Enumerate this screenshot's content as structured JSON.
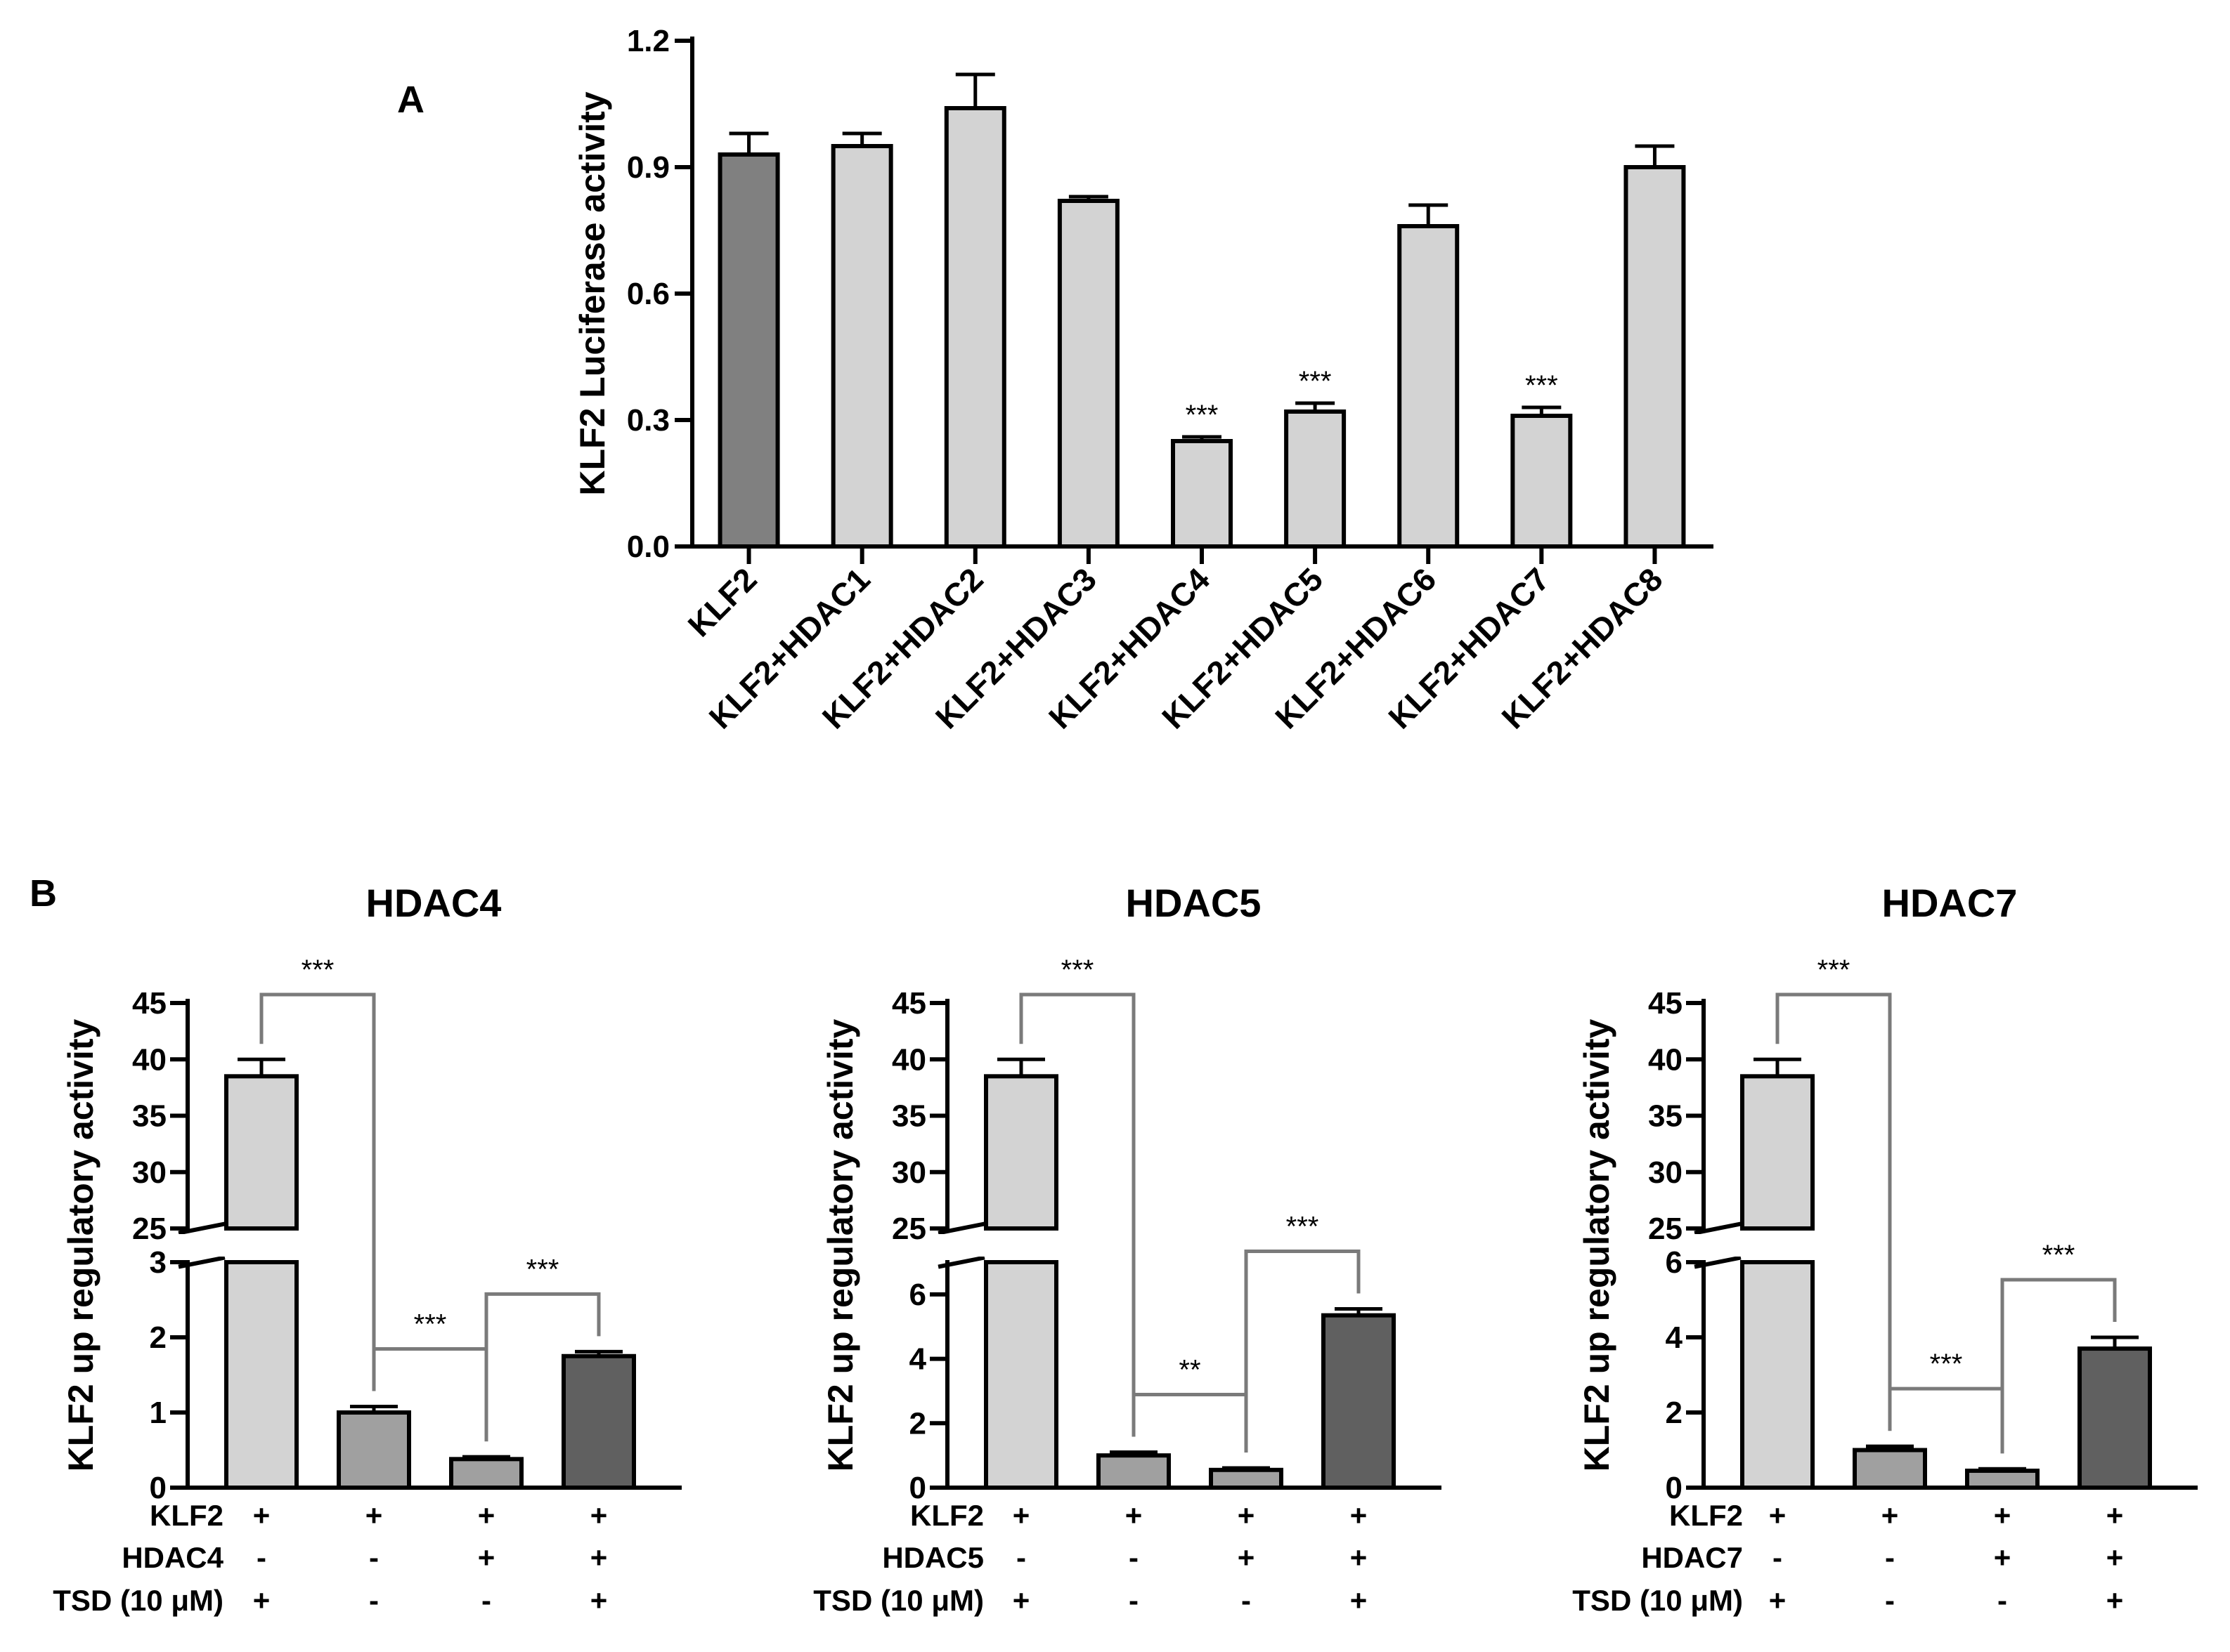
{
  "panels": {
    "a": "A",
    "b": "B"
  },
  "chart_data": [
    {
      "id": "A",
      "type": "bar",
      "title": "",
      "xlabel": "",
      "ylabel": "KLF2 Luciferase activity",
      "ylim": [
        0,
        1.2
      ],
      "yticks": [
        "0.0",
        "0.3",
        "0.6",
        "0.9",
        "1.2"
      ],
      "ytick_values": [
        0,
        0.3,
        0.6,
        0.9,
        1.2
      ],
      "categories": [
        "KLF2",
        "KLF2+HDAC1",
        "KLF2+HDAC2",
        "KLF2+HDAC3",
        "KLF2+HDAC4",
        "KLF2+HDAC5",
        "KLF2+HDAC6",
        "KLF2+HDAC7",
        "KLF2+HDAC8"
      ],
      "values": [
        0.93,
        0.95,
        1.04,
        0.82,
        0.25,
        0.32,
        0.76,
        0.31,
        0.9
      ],
      "errors": [
        0.05,
        0.03,
        0.08,
        0.01,
        0.01,
        0.02,
        0.05,
        0.02,
        0.05
      ],
      "significance": [
        "",
        "",
        "",
        "",
        "***",
        "***",
        "",
        "***",
        ""
      ],
      "colors": [
        "#808080",
        "#d3d3d3",
        "#d3d3d3",
        "#d3d3d3",
        "#d3d3d3",
        "#d3d3d3",
        "#d3d3d3",
        "#d3d3d3",
        "#d3d3d3"
      ]
    },
    {
      "id": "B-HDAC4",
      "type": "bar",
      "title": "HDAC4",
      "ylabel": "KLF2 up regulatory activity",
      "axis_break": {
        "lower": [
          0,
          3
        ],
        "upper": [
          25,
          45
        ]
      },
      "yticks_lower": [
        "0",
        "1",
        "2",
        "3"
      ],
      "ytick_values_lower": [
        0,
        1,
        2,
        3
      ],
      "yticks_upper": [
        "25",
        "30",
        "35",
        "40",
        "45"
      ],
      "ytick_values_upper": [
        25,
        30,
        35,
        40,
        45
      ],
      "values": [
        38.5,
        1.0,
        0.38,
        1.75
      ],
      "errors": [
        1.5,
        0.08,
        0.03,
        0.06
      ],
      "colors": [
        "#d3d3d3",
        "#a0a0a0",
        "#a0a0a0",
        "#606060"
      ],
      "row_labels": [
        "KLF2",
        "HDAC4",
        "TSD (10 μM)"
      ],
      "rows": [
        [
          "+",
          "+",
          "+",
          "+"
        ],
        [
          "-",
          "-",
          "+",
          "+"
        ],
        [
          "+",
          "-",
          "-",
          "+"
        ]
      ],
      "comparisons": [
        {
          "from": 0,
          "to": 1,
          "label": "***"
        },
        {
          "from": 1,
          "to": 2,
          "label": "***"
        },
        {
          "from": 2,
          "to": 3,
          "label": "***"
        }
      ]
    },
    {
      "id": "B-HDAC5",
      "type": "bar",
      "title": "HDAC5",
      "ylabel": "KLF2 up regulatory activity",
      "axis_break": {
        "lower": [
          0,
          7
        ],
        "upper": [
          25,
          45
        ]
      },
      "yticks_lower": [
        "0",
        "2",
        "4",
        "6"
      ],
      "ytick_values_lower": [
        0,
        2,
        4,
        6
      ],
      "yticks_upper": [
        "25",
        "30",
        "35",
        "40",
        "45"
      ],
      "ytick_values_upper": [
        25,
        30,
        35,
        40,
        45
      ],
      "values": [
        38.5,
        1.0,
        0.55,
        5.35
      ],
      "errors": [
        1.5,
        0.1,
        0.06,
        0.2
      ],
      "colors": [
        "#d3d3d3",
        "#a0a0a0",
        "#a0a0a0",
        "#606060"
      ],
      "row_labels": [
        "KLF2",
        "HDAC5",
        "TSD (10 μM)"
      ],
      "rows": [
        [
          "+",
          "+",
          "+",
          "+"
        ],
        [
          "-",
          "-",
          "+",
          "+"
        ],
        [
          "+",
          "-",
          "-",
          "+"
        ]
      ],
      "comparisons": [
        {
          "from": 0,
          "to": 1,
          "label": "***"
        },
        {
          "from": 1,
          "to": 2,
          "label": "**"
        },
        {
          "from": 2,
          "to": 3,
          "label": "***"
        }
      ]
    },
    {
      "id": "B-HDAC7",
      "type": "bar",
      "title": "HDAC7",
      "ylabel": "KLF2 up regulatory activity",
      "axis_break": {
        "lower": [
          0,
          6
        ],
        "upper": [
          25,
          45
        ]
      },
      "yticks_lower": [
        "0",
        "2",
        "4",
        "6"
      ],
      "ytick_values_lower": [
        0,
        2,
        4,
        6
      ],
      "yticks_upper": [
        "25",
        "30",
        "35",
        "40",
        "45"
      ],
      "ytick_values_upper": [
        25,
        30,
        35,
        40,
        45
      ],
      "values": [
        38.5,
        1.0,
        0.45,
        3.7
      ],
      "errors": [
        1.5,
        0.1,
        0.05,
        0.3
      ],
      "colors": [
        "#d3d3d3",
        "#a0a0a0",
        "#a0a0a0",
        "#606060"
      ],
      "row_labels": [
        "KLF2",
        "HDAC7",
        "TSD (10 μM)"
      ],
      "rows": [
        [
          "+",
          "+",
          "+",
          "+"
        ],
        [
          "-",
          "-",
          "+",
          "+"
        ],
        [
          "+",
          "-",
          "-",
          "+"
        ]
      ],
      "comparisons": [
        {
          "from": 0,
          "to": 1,
          "label": "***"
        },
        {
          "from": 1,
          "to": 2,
          "label": "***"
        },
        {
          "from": 2,
          "to": 3,
          "label": "***"
        }
      ]
    }
  ]
}
